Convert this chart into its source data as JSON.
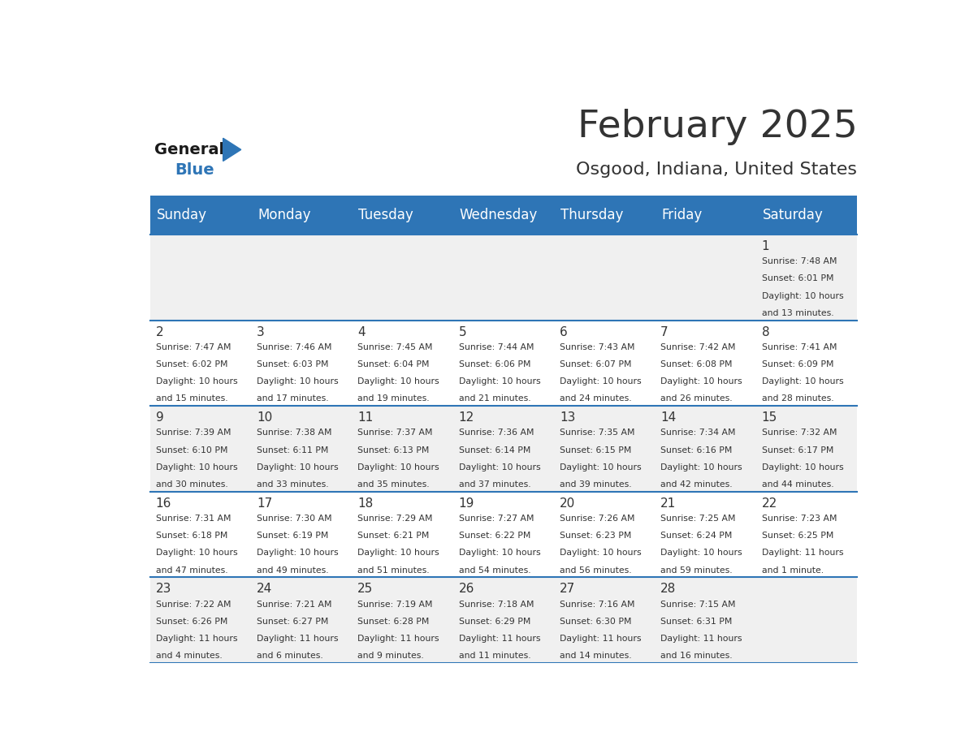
{
  "title": "February 2025",
  "subtitle": "Osgood, Indiana, United States",
  "header_bg": "#2E75B6",
  "header_text_color": "#FFFFFF",
  "days_of_week": [
    "Sunday",
    "Monday",
    "Tuesday",
    "Wednesday",
    "Thursday",
    "Friday",
    "Saturday"
  ],
  "background_color": "#FFFFFF",
  "cell_bg_even": "#F0F0F0",
  "cell_bg_odd": "#FFFFFF",
  "divider_color": "#2E75B6",
  "text_color": "#333333",
  "day_number_color": "#333333",
  "logo_general_color": "#1A1A1A",
  "logo_blue_color": "#2E75B6",
  "calendar_data": [
    {
      "day": 1,
      "col": 6,
      "row": 0,
      "sunrise": "7:48 AM",
      "sunset": "6:01 PM",
      "daylight_hours": 10,
      "daylight_minutes": 13
    },
    {
      "day": 2,
      "col": 0,
      "row": 1,
      "sunrise": "7:47 AM",
      "sunset": "6:02 PM",
      "daylight_hours": 10,
      "daylight_minutes": 15
    },
    {
      "day": 3,
      "col": 1,
      "row": 1,
      "sunrise": "7:46 AM",
      "sunset": "6:03 PM",
      "daylight_hours": 10,
      "daylight_minutes": 17
    },
    {
      "day": 4,
      "col": 2,
      "row": 1,
      "sunrise": "7:45 AM",
      "sunset": "6:04 PM",
      "daylight_hours": 10,
      "daylight_minutes": 19
    },
    {
      "day": 5,
      "col": 3,
      "row": 1,
      "sunrise": "7:44 AM",
      "sunset": "6:06 PM",
      "daylight_hours": 10,
      "daylight_minutes": 21
    },
    {
      "day": 6,
      "col": 4,
      "row": 1,
      "sunrise": "7:43 AM",
      "sunset": "6:07 PM",
      "daylight_hours": 10,
      "daylight_minutes": 24
    },
    {
      "day": 7,
      "col": 5,
      "row": 1,
      "sunrise": "7:42 AM",
      "sunset": "6:08 PM",
      "daylight_hours": 10,
      "daylight_minutes": 26
    },
    {
      "day": 8,
      "col": 6,
      "row": 1,
      "sunrise": "7:41 AM",
      "sunset": "6:09 PM",
      "daylight_hours": 10,
      "daylight_minutes": 28
    },
    {
      "day": 9,
      "col": 0,
      "row": 2,
      "sunrise": "7:39 AM",
      "sunset": "6:10 PM",
      "daylight_hours": 10,
      "daylight_minutes": 30
    },
    {
      "day": 10,
      "col": 1,
      "row": 2,
      "sunrise": "7:38 AM",
      "sunset": "6:11 PM",
      "daylight_hours": 10,
      "daylight_minutes": 33
    },
    {
      "day": 11,
      "col": 2,
      "row": 2,
      "sunrise": "7:37 AM",
      "sunset": "6:13 PM",
      "daylight_hours": 10,
      "daylight_minutes": 35
    },
    {
      "day": 12,
      "col": 3,
      "row": 2,
      "sunrise": "7:36 AM",
      "sunset": "6:14 PM",
      "daylight_hours": 10,
      "daylight_minutes": 37
    },
    {
      "day": 13,
      "col": 4,
      "row": 2,
      "sunrise": "7:35 AM",
      "sunset": "6:15 PM",
      "daylight_hours": 10,
      "daylight_minutes": 39
    },
    {
      "day": 14,
      "col": 5,
      "row": 2,
      "sunrise": "7:34 AM",
      "sunset": "6:16 PM",
      "daylight_hours": 10,
      "daylight_minutes": 42
    },
    {
      "day": 15,
      "col": 6,
      "row": 2,
      "sunrise": "7:32 AM",
      "sunset": "6:17 PM",
      "daylight_hours": 10,
      "daylight_minutes": 44
    },
    {
      "day": 16,
      "col": 0,
      "row": 3,
      "sunrise": "7:31 AM",
      "sunset": "6:18 PM",
      "daylight_hours": 10,
      "daylight_minutes": 47
    },
    {
      "day": 17,
      "col": 1,
      "row": 3,
      "sunrise": "7:30 AM",
      "sunset": "6:19 PM",
      "daylight_hours": 10,
      "daylight_minutes": 49
    },
    {
      "day": 18,
      "col": 2,
      "row": 3,
      "sunrise": "7:29 AM",
      "sunset": "6:21 PM",
      "daylight_hours": 10,
      "daylight_minutes": 51
    },
    {
      "day": 19,
      "col": 3,
      "row": 3,
      "sunrise": "7:27 AM",
      "sunset": "6:22 PM",
      "daylight_hours": 10,
      "daylight_minutes": 54
    },
    {
      "day": 20,
      "col": 4,
      "row": 3,
      "sunrise": "7:26 AM",
      "sunset": "6:23 PM",
      "daylight_hours": 10,
      "daylight_minutes": 56
    },
    {
      "day": 21,
      "col": 5,
      "row": 3,
      "sunrise": "7:25 AM",
      "sunset": "6:24 PM",
      "daylight_hours": 10,
      "daylight_minutes": 59
    },
    {
      "day": 22,
      "col": 6,
      "row": 3,
      "sunrise": "7:23 AM",
      "sunset": "6:25 PM",
      "daylight_hours": 11,
      "daylight_minutes": 1
    },
    {
      "day": 23,
      "col": 0,
      "row": 4,
      "sunrise": "7:22 AM",
      "sunset": "6:26 PM",
      "daylight_hours": 11,
      "daylight_minutes": 4
    },
    {
      "day": 24,
      "col": 1,
      "row": 4,
      "sunrise": "7:21 AM",
      "sunset": "6:27 PM",
      "daylight_hours": 11,
      "daylight_minutes": 6
    },
    {
      "day": 25,
      "col": 2,
      "row": 4,
      "sunrise": "7:19 AM",
      "sunset": "6:28 PM",
      "daylight_hours": 11,
      "daylight_minutes": 9
    },
    {
      "day": 26,
      "col": 3,
      "row": 4,
      "sunrise": "7:18 AM",
      "sunset": "6:29 PM",
      "daylight_hours": 11,
      "daylight_minutes": 11
    },
    {
      "day": 27,
      "col": 4,
      "row": 4,
      "sunrise": "7:16 AM",
      "sunset": "6:30 PM",
      "daylight_hours": 11,
      "daylight_minutes": 14
    },
    {
      "day": 28,
      "col": 5,
      "row": 4,
      "sunrise": "7:15 AM",
      "sunset": "6:31 PM",
      "daylight_hours": 11,
      "daylight_minutes": 16
    }
  ]
}
